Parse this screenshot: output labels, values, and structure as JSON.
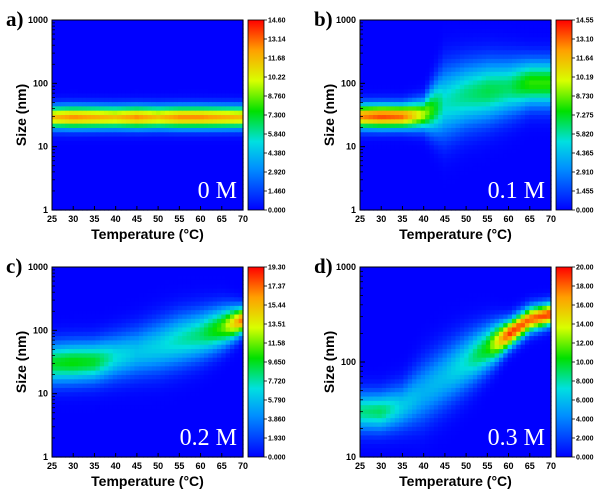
{
  "chart_data": [
    {
      "type": "heatmap",
      "panel_label": "a)",
      "annotation": "0 M",
      "xlabel": "Temperature (°C)",
      "ylabel": "Size (nm)",
      "x_ticks": [
        "25",
        "30",
        "35",
        "40",
        "45",
        "50",
        "55",
        "60",
        "65",
        "70"
      ],
      "xlim": [
        25,
        70
      ],
      "y_scale": "log",
      "ylim": [
        1,
        1000
      ],
      "y_ticks": [
        "1",
        "10",
        "100",
        "1000"
      ],
      "y_tick_values": [
        1,
        10,
        100,
        1000
      ],
      "colorbar_ticks": [
        "14.60",
        "13.14",
        "11.68",
        "10.22",
        "8.760",
        "7.300",
        "5.840",
        "4.380",
        "2.920",
        "1.460",
        "0.000"
      ],
      "zlim": [
        0,
        14.6
      ],
      "ridge": [
        {
          "x": 25,
          "center_nm": 29,
          "width_decades": 0.12,
          "peak": 11.5
        },
        {
          "x": 30,
          "center_nm": 29,
          "width_decades": 0.12,
          "peak": 12.5
        },
        {
          "x": 35,
          "center_nm": 29,
          "width_decades": 0.12,
          "peak": 12.0
        },
        {
          "x": 40,
          "center_nm": 29,
          "width_decades": 0.12,
          "peak": 11.5
        },
        {
          "x": 45,
          "center_nm": 29,
          "width_decades": 0.12,
          "peak": 12.5
        },
        {
          "x": 50,
          "center_nm": 29,
          "width_decades": 0.12,
          "peak": 11.5
        },
        {
          "x": 55,
          "center_nm": 29,
          "width_decades": 0.12,
          "peak": 12.5
        },
        {
          "x": 60,
          "center_nm": 29,
          "width_decades": 0.12,
          "peak": 12.5
        },
        {
          "x": 65,
          "center_nm": 29,
          "width_decades": 0.12,
          "peak": 12.0
        },
        {
          "x": 70,
          "center_nm": 29,
          "width_decades": 0.12,
          "peak": 11.5
        }
      ]
    },
    {
      "type": "heatmap",
      "panel_label": "b)",
      "annotation": "0.1 M",
      "xlabel": "Temperature (°C)",
      "ylabel": "Size (nm)",
      "x_ticks": [
        "25",
        "30",
        "35",
        "40",
        "45",
        "50",
        "55",
        "60",
        "65",
        "70"
      ],
      "xlim": [
        25,
        70
      ],
      "y_scale": "log",
      "ylim": [
        1,
        1000
      ],
      "y_ticks": [
        "1",
        "10",
        "100",
        "1000"
      ],
      "y_tick_values": [
        1,
        10,
        100,
        1000
      ],
      "colorbar_ticks": [
        "14.55",
        "13.10",
        "11.64",
        "10.19",
        "8.730",
        "7.275",
        "5.820",
        "4.365",
        "2.910",
        "1.455",
        "0.000"
      ],
      "zlim": [
        0,
        14.55
      ],
      "ridge": [
        {
          "x": 25,
          "center_nm": 30,
          "width_decades": 0.13,
          "peak": 12.5
        },
        {
          "x": 30,
          "center_nm": 30,
          "width_decades": 0.13,
          "peak": 13.5
        },
        {
          "x": 35,
          "center_nm": 30,
          "width_decades": 0.13,
          "peak": 13.0
        },
        {
          "x": 40,
          "center_nm": 32,
          "width_decades": 0.16,
          "peak": 9.5
        },
        {
          "x": 45,
          "center_nm": 50,
          "width_decades": 0.38,
          "peak": 5.5
        },
        {
          "x": 50,
          "center_nm": 65,
          "width_decades": 0.35,
          "peak": 6.2
        },
        {
          "x": 55,
          "center_nm": 75,
          "width_decades": 0.33,
          "peak": 6.8
        },
        {
          "x": 60,
          "center_nm": 85,
          "width_decades": 0.3,
          "peak": 6.5
        },
        {
          "x": 65,
          "center_nm": 100,
          "width_decades": 0.25,
          "peak": 8.0
        },
        {
          "x": 70,
          "center_nm": 100,
          "width_decades": 0.25,
          "peak": 8.0
        }
      ]
    },
    {
      "type": "heatmap",
      "panel_label": "c)",
      "annotation": "0.2 M",
      "xlabel": "Temperature (°C)",
      "ylabel": "Size (nm)",
      "x_ticks": [
        "25",
        "30",
        "35",
        "40",
        "45",
        "50",
        "55",
        "60",
        "65",
        "70"
      ],
      "xlim": [
        25,
        70
      ],
      "y_scale": "log",
      "ylim": [
        1,
        1000
      ],
      "y_ticks": [
        "1",
        "10",
        "100",
        "1000"
      ],
      "y_tick_values": [
        1,
        10,
        100,
        1000
      ],
      "colorbar_ticks": [
        "19.30",
        "17.37",
        "15.44",
        "13.51",
        "11.58",
        "9.650",
        "7.720",
        "5.790",
        "3.860",
        "1.930",
        "0.000"
      ],
      "zlim": [
        0,
        19.3
      ],
      "ridge": [
        {
          "x": 25,
          "center_nm": 30,
          "width_decades": 0.22,
          "peak": 9.5
        },
        {
          "x": 30,
          "center_nm": 31,
          "width_decades": 0.22,
          "peak": 10.0
        },
        {
          "x": 35,
          "center_nm": 32,
          "width_decades": 0.22,
          "peak": 9.5
        },
        {
          "x": 40,
          "center_nm": 38,
          "width_decades": 0.24,
          "peak": 7.0
        },
        {
          "x": 45,
          "center_nm": 45,
          "width_decades": 0.26,
          "peak": 6.0
        },
        {
          "x": 50,
          "center_nm": 55,
          "width_decades": 0.28,
          "peak": 6.5
        },
        {
          "x": 55,
          "center_nm": 70,
          "width_decades": 0.28,
          "peak": 7.5
        },
        {
          "x": 60,
          "center_nm": 85,
          "width_decades": 0.26,
          "peak": 8.5
        },
        {
          "x": 65,
          "center_nm": 110,
          "width_decades": 0.22,
          "peak": 11.0
        },
        {
          "x": 70,
          "center_nm": 145,
          "width_decades": 0.14,
          "peak": 17.5
        }
      ]
    },
    {
      "type": "heatmap",
      "panel_label": "d)",
      "annotation": "0.3 M",
      "xlabel": "Temperature (°C)",
      "ylabel": "Size (nm)",
      "x_ticks": [
        "25",
        "30",
        "35",
        "40",
        "45",
        "50",
        "55",
        "60",
        "65",
        "70"
      ],
      "xlim": [
        25,
        70
      ],
      "y_scale": "log",
      "ylim": [
        10,
        1000
      ],
      "y_ticks": [
        "10",
        "100",
        "1000"
      ],
      "y_tick_values": [
        10,
        100,
        1000
      ],
      "colorbar_ticks": [
        "20.00",
        "18.00",
        "16.00",
        "14.00",
        "12.00",
        "10.00",
        "8.000",
        "6.000",
        "4.000",
        "2.000",
        "0.000"
      ],
      "zlim": [
        0,
        20
      ],
      "ridge": [
        {
          "x": 25,
          "center_nm": 30,
          "width_decades": 0.14,
          "peak": 8.5
        },
        {
          "x": 30,
          "center_nm": 30,
          "width_decades": 0.14,
          "peak": 9.0
        },
        {
          "x": 35,
          "center_nm": 34,
          "width_decades": 0.16,
          "peak": 6.5
        },
        {
          "x": 40,
          "center_nm": 48,
          "width_decades": 0.22,
          "peak": 5.5
        },
        {
          "x": 45,
          "center_nm": 70,
          "width_decades": 0.22,
          "peak": 6.0
        },
        {
          "x": 50,
          "center_nm": 100,
          "width_decades": 0.2,
          "peak": 7.5
        },
        {
          "x": 55,
          "center_nm": 140,
          "width_decades": 0.16,
          "peak": 10.5
        },
        {
          "x": 60,
          "center_nm": 195,
          "width_decades": 0.1,
          "peak": 19.0
        },
        {
          "x": 65,
          "center_nm": 280,
          "width_decades": 0.09,
          "peak": 18.0
        },
        {
          "x": 70,
          "center_nm": 320,
          "width_decades": 0.08,
          "peak": 19.0
        }
      ]
    }
  ]
}
